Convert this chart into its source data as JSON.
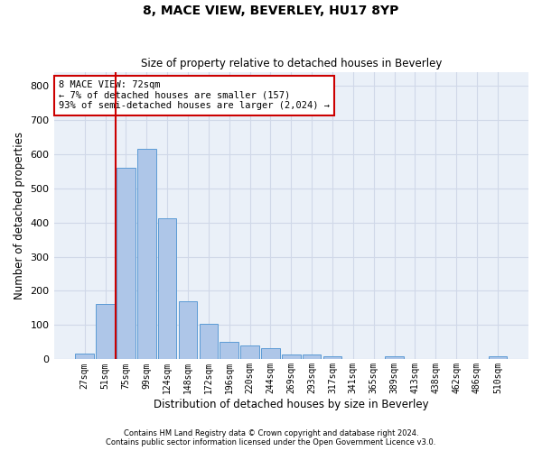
{
  "title": "8, MACE VIEW, BEVERLEY, HU17 8YP",
  "subtitle": "Size of property relative to detached houses in Beverley",
  "xlabel": "Distribution of detached houses by size in Beverley",
  "ylabel": "Number of detached properties",
  "categories": [
    "27sqm",
    "51sqm",
    "75sqm",
    "99sqm",
    "124sqm",
    "148sqm",
    "172sqm",
    "196sqm",
    "220sqm",
    "244sqm",
    "269sqm",
    "293sqm",
    "317sqm",
    "341sqm",
    "365sqm",
    "389sqm",
    "413sqm",
    "438sqm",
    "462sqm",
    "486sqm",
    "510sqm"
  ],
  "bar_values": [
    18,
    163,
    560,
    615,
    413,
    170,
    103,
    52,
    40,
    32,
    15,
    14,
    10,
    0,
    0,
    8,
    0,
    0,
    0,
    0,
    8
  ],
  "bar_color": "#aec6e8",
  "bar_edge_color": "#5b9bd5",
  "grid_color": "#d0d8e8",
  "background_color": "#eaf0f8",
  "property_line_index": 2,
  "property_line_color": "#cc0000",
  "annotation_text": "8 MACE VIEW: 72sqm\n← 7% of detached houses are smaller (157)\n93% of semi-detached houses are larger (2,024) →",
  "annotation_box_color": "#cc0000",
  "ylim": [
    0,
    840
  ],
  "yticks": [
    0,
    100,
    200,
    300,
    400,
    500,
    600,
    700,
    800
  ],
  "footer1": "Contains HM Land Registry data © Crown copyright and database right 2024.",
  "footer2": "Contains public sector information licensed under the Open Government Licence v3.0."
}
